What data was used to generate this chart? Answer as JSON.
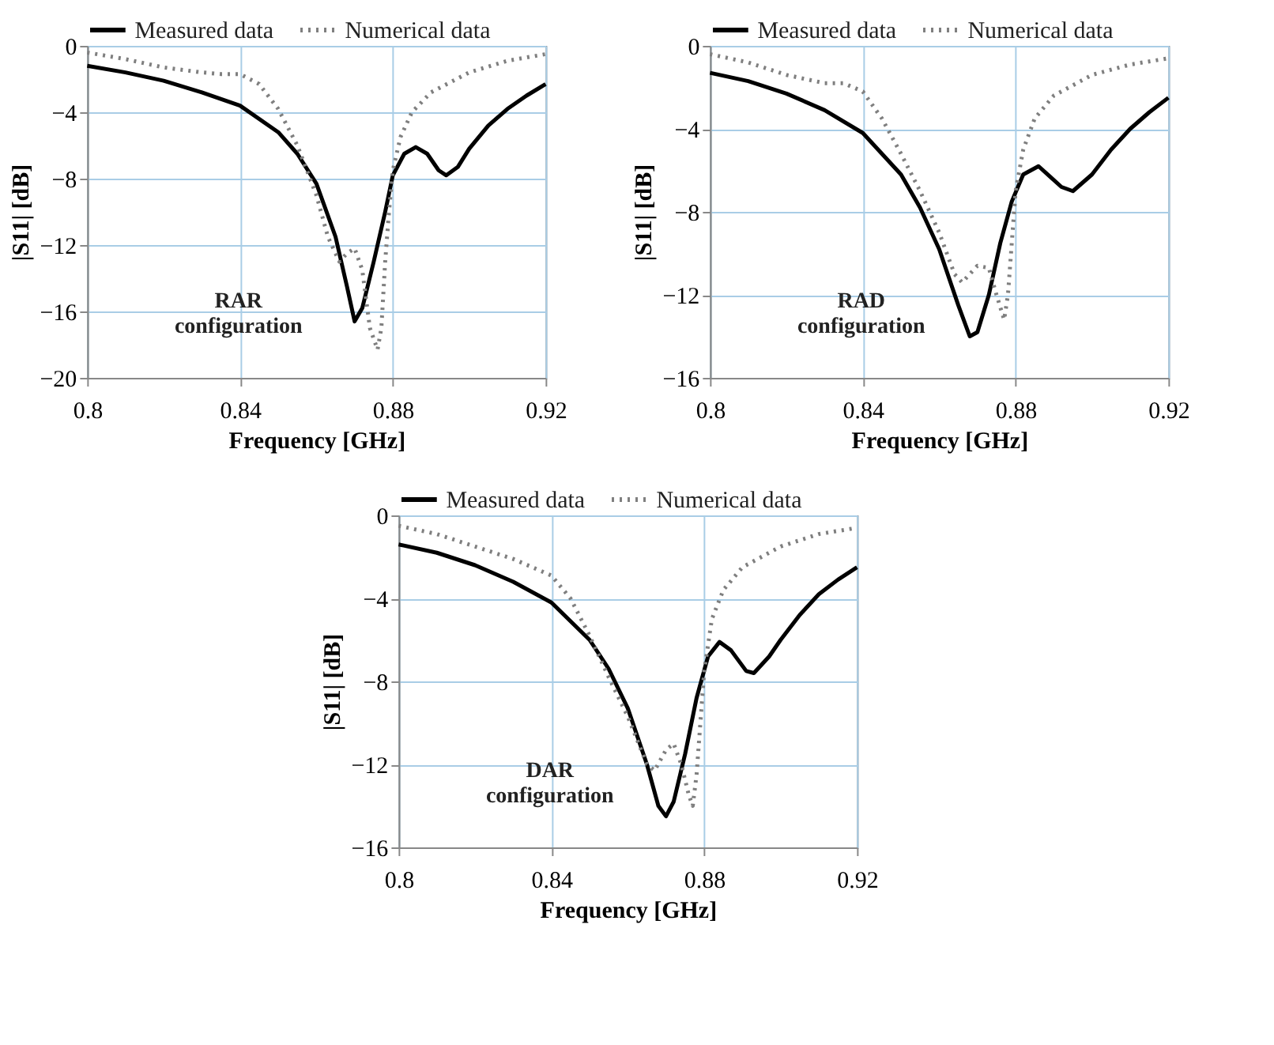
{
  "chart_data": [
    {
      "type": "line",
      "xlabel": "Frequency [GHz]",
      "ylabel": "|S11| [dB]",
      "annotations": [
        "RAR configuration"
      ],
      "xlim": [
        0.8,
        0.92
      ],
      "xticks": [
        0.8,
        0.84,
        0.88,
        0.92
      ],
      "ylim": [
        -20,
        0
      ],
      "yticks": [
        -20,
        -16,
        -12,
        -8,
        -4,
        0
      ],
      "grid": true,
      "legend": "top",
      "series": [
        {
          "name": "Measured data",
          "color": "#000000",
          "line_style": "solid",
          "x": [
            0.8,
            0.81,
            0.82,
            0.83,
            0.84,
            0.85,
            0.855,
            0.86,
            0.865,
            0.868,
            0.87,
            0.872,
            0.875,
            0.878,
            0.88,
            0.883,
            0.886,
            0.889,
            0.892,
            0.894,
            0.897,
            0.9,
            0.905,
            0.91,
            0.915,
            0.92
          ],
          "values": [
            -1.2,
            -1.6,
            -2.1,
            -2.8,
            -3.6,
            -5.2,
            -6.5,
            -8.3,
            -11.5,
            -14.5,
            -16.6,
            -15.8,
            -13,
            -10,
            -7.8,
            -6.5,
            -6.1,
            -6.5,
            -7.5,
            -7.8,
            -7.3,
            -6.2,
            -4.8,
            -3.8,
            -3.0,
            -2.3
          ]
        },
        {
          "name": "Numerical data",
          "color": "#7f7f7f",
          "line_style": "dotted",
          "x": [
            0.8,
            0.81,
            0.82,
            0.83,
            0.835,
            0.84,
            0.845,
            0.85,
            0.855,
            0.86,
            0.863,
            0.866,
            0.868,
            0.87,
            0.872,
            0.874,
            0.876,
            0.877,
            0.878,
            0.879,
            0.88,
            0.882,
            0.885,
            0.89,
            0.9,
            0.91,
            0.92
          ],
          "values": [
            -0.4,
            -0.8,
            -1.3,
            -1.6,
            -1.7,
            -1.7,
            -2.3,
            -3.8,
            -6,
            -9,
            -11.5,
            -13,
            -12.5,
            -12.2,
            -13.5,
            -17,
            -18.3,
            -17,
            -13,
            -10,
            -7.5,
            -5.5,
            -4,
            -2.8,
            -1.6,
            -0.9,
            -0.5
          ]
        }
      ]
    },
    {
      "type": "line",
      "xlabel": "Frequency [GHz]",
      "ylabel": "|S11| [dB]",
      "annotations": [
        "RAD configuration"
      ],
      "xlim": [
        0.8,
        0.92
      ],
      "xticks": [
        0.8,
        0.84,
        0.88,
        0.92
      ],
      "ylim": [
        -16,
        0
      ],
      "yticks": [
        -16,
        -12,
        -8,
        -4,
        0
      ],
      "grid": true,
      "legend": "top",
      "series": [
        {
          "name": "Measured data",
          "color": "#000000",
          "line_style": "solid",
          "x": [
            0.8,
            0.81,
            0.82,
            0.83,
            0.84,
            0.85,
            0.855,
            0.86,
            0.865,
            0.868,
            0.87,
            0.873,
            0.876,
            0.879,
            0.882,
            0.886,
            0.889,
            0.892,
            0.895,
            0.9,
            0.905,
            0.91,
            0.915,
            0.92
          ],
          "values": [
            -1.3,
            -1.7,
            -2.3,
            -3.1,
            -4.2,
            -6.2,
            -7.8,
            -9.8,
            -12.5,
            -14,
            -13.8,
            -12,
            -9.5,
            -7.5,
            -6.2,
            -5.8,
            -6.3,
            -6.8,
            -7,
            -6.2,
            -5,
            -4,
            -3.2,
            -2.5
          ]
        },
        {
          "name": "Numerical data",
          "color": "#7f7f7f",
          "line_style": "dotted",
          "x": [
            0.8,
            0.81,
            0.82,
            0.83,
            0.835,
            0.84,
            0.845,
            0.85,
            0.855,
            0.86,
            0.864,
            0.866,
            0.868,
            0.87,
            0.873,
            0.875,
            0.877,
            0.878,
            0.879,
            0.88,
            0.882,
            0.885,
            0.89,
            0.9,
            0.91,
            0.92
          ],
          "values": [
            -0.4,
            -0.8,
            -1.4,
            -1.8,
            -1.8,
            -2.2,
            -3.5,
            -5.2,
            -7,
            -9,
            -11,
            -11.4,
            -11,
            -10.6,
            -10.7,
            -12,
            -13.2,
            -12,
            -9.5,
            -7,
            -5,
            -3.5,
            -2.4,
            -1.4,
            -0.9,
            -0.6
          ]
        }
      ]
    },
    {
      "type": "line",
      "xlabel": "Frequency [GHz]",
      "ylabel": "|S11| [dB]",
      "annotations": [
        "DAR configuration"
      ],
      "xlim": [
        0.8,
        0.92
      ],
      "xticks": [
        0.8,
        0.84,
        0.88,
        0.92
      ],
      "ylim": [
        -16,
        0
      ],
      "yticks": [
        -16,
        -12,
        -8,
        -4,
        0
      ],
      "grid": true,
      "legend": "top",
      "series": [
        {
          "name": "Measured data",
          "color": "#000000",
          "line_style": "solid",
          "x": [
            0.8,
            0.81,
            0.82,
            0.83,
            0.84,
            0.85,
            0.855,
            0.86,
            0.865,
            0.868,
            0.87,
            0.872,
            0.875,
            0.878,
            0.881,
            0.884,
            0.887,
            0.891,
            0.893,
            0.897,
            0.9,
            0.905,
            0.91,
            0.915,
            0.92
          ],
          "values": [
            -1.4,
            -1.8,
            -2.4,
            -3.2,
            -4.2,
            -6,
            -7.4,
            -9.3,
            -12,
            -14,
            -14.5,
            -13.8,
            -11.5,
            -8.8,
            -6.8,
            -6.1,
            -6.5,
            -7.5,
            -7.6,
            -6.8,
            -6,
            -4.8,
            -3.8,
            -3.1,
            -2.5
          ]
        },
        {
          "name": "Numerical data",
          "color": "#7f7f7f",
          "line_style": "dotted",
          "x": [
            0.8,
            0.81,
            0.82,
            0.83,
            0.84,
            0.845,
            0.85,
            0.855,
            0.86,
            0.865,
            0.867,
            0.87,
            0.872,
            0.874,
            0.876,
            0.877,
            0.878,
            0.879,
            0.88,
            0.882,
            0.885,
            0.89,
            0.9,
            0.91,
            0.92
          ],
          "values": [
            -0.5,
            -0.9,
            -1.5,
            -2.1,
            -2.9,
            -4,
            -5.8,
            -7.8,
            -9.7,
            -12,
            -12.3,
            -11.3,
            -11,
            -12,
            -13.5,
            -14,
            -12.5,
            -10,
            -7.5,
            -5,
            -3.6,
            -2.5,
            -1.5,
            -0.9,
            -0.6
          ]
        }
      ]
    }
  ]
}
